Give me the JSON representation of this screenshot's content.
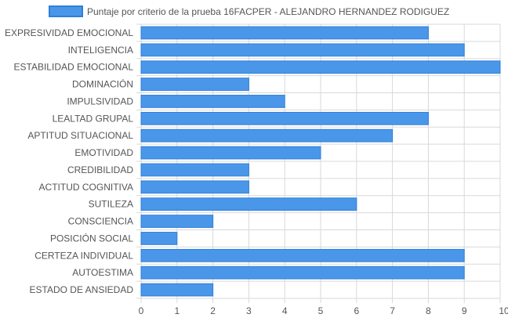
{
  "chart_data": {
    "type": "bar",
    "orientation": "horizontal",
    "categories": [
      "EXPRESIVIDAD EMOCIONAL",
      "INTELIGENCIA",
      "ESTABILIDAD EMOCIONAL",
      "DOMINACIÓN",
      "IMPULSIVIDAD",
      "LEALTAD GRUPAL",
      "APTITUD SITUACIONAL",
      "EMOTIVIDAD",
      "CREDIBILIDAD",
      "ACTITUD COGNITIVA",
      "SUTILEZA",
      "CONSCIENCIA",
      "POSICIÓN SOCIAL",
      "CERTEZA INDIVIDUAL",
      "AUTOESTIMA",
      "ESTADO DE ANSIEDAD"
    ],
    "series": [
      {
        "name": "Puntaje por criterio de la prueba 16FACPER - ALEJANDRO HERNANDEZ RODIGUEZ",
        "values": [
          8,
          9,
          10,
          3,
          4,
          8,
          7,
          5,
          3,
          3,
          6,
          2,
          1,
          9,
          9,
          2
        ]
      }
    ],
    "xlim": [
      0,
      10
    ],
    "x_ticks": [
      "0",
      "1",
      "2",
      "3",
      "4",
      "5",
      "6",
      "7",
      "8",
      "9",
      "10"
    ],
    "grid": true,
    "legend_position": "top",
    "colors": {
      "bar_fill": "#4a97ea",
      "bar_stroke": "#2f7fd8",
      "grid": "#d9d9d9",
      "text": "#555555"
    }
  }
}
